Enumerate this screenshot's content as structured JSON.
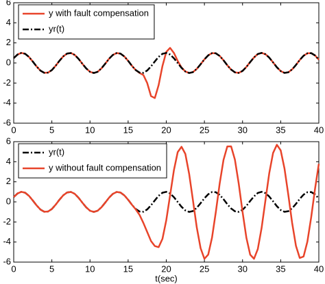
{
  "chart_data": [
    {
      "type": "line",
      "x": [
        0,
        0.5,
        1,
        1.5,
        2,
        2.5,
        3,
        3.5,
        4,
        4.5,
        5,
        5.5,
        6,
        6.5,
        7,
        7.5,
        8,
        8.5,
        9,
        9.5,
        10,
        10.5,
        11,
        11.5,
        12,
        12.5,
        13,
        13.5,
        14,
        14.5,
        15,
        15.5,
        16,
        16.5,
        17,
        17.5,
        18,
        18.5,
        19,
        19.5,
        20,
        20.5,
        21,
        21.5,
        22,
        22.5,
        23,
        23.5,
        24,
        24.5,
        25,
        25.5,
        26,
        26.5,
        27,
        27.5,
        28,
        28.5,
        29,
        29.5,
        30,
        30.5,
        31,
        31.5,
        32,
        32.5,
        33,
        33.5,
        34,
        34.5,
        35,
        35.5,
        36,
        36.5,
        37,
        37.5,
        38,
        38.5,
        39,
        39.5,
        40
      ],
      "series": [
        {
          "name": "y with fault compensation",
          "color": "#e8442a",
          "linestyle": "solid",
          "values": [
            0.48,
            0.84,
            1.0,
            0.91,
            0.6,
            0.14,
            -0.35,
            -0.76,
            -0.98,
            -0.96,
            -0.71,
            -0.28,
            0.22,
            0.66,
            0.94,
            0.99,
            0.8,
            0.41,
            -0.08,
            -0.54,
            -0.88,
            -1.0,
            -0.88,
            -0.54,
            -0.07,
            0.42,
            0.8,
            0.99,
            0.93,
            0.65,
            0.21,
            -0.29,
            -0.71,
            -1.0,
            -1.2,
            -2.0,
            -3.3,
            -3.5,
            -2.2,
            -0.3,
            1.1,
            1.5,
            1.0,
            0.2,
            -0.45,
            -0.85,
            -1.0,
            -0.91,
            -0.59,
            -0.13,
            0.36,
            0.76,
            0.98,
            0.96,
            0.7,
            0.27,
            -0.23,
            -0.66,
            -0.94,
            -0.99,
            -0.79,
            -0.4,
            0.09,
            0.55,
            0.89,
            1.0,
            0.87,
            0.53,
            0.06,
            -0.43,
            -0.81,
            -0.99,
            -0.93,
            -0.64,
            -0.2,
            0.3,
            0.72,
            0.96,
            0.98,
            0.75,
            0.33
          ]
        },
        {
          "name": "yr(t)",
          "color": "#000000",
          "linestyle": "dashdot",
          "values": [
            0.48,
            0.84,
            1.0,
            0.91,
            0.6,
            0.14,
            -0.35,
            -0.76,
            -0.98,
            -0.96,
            -0.71,
            -0.28,
            0.22,
            0.66,
            0.94,
            0.99,
            0.8,
            0.41,
            -0.08,
            -0.54,
            -0.88,
            -1.0,
            -0.88,
            -0.54,
            -0.07,
            0.42,
            0.8,
            0.99,
            0.93,
            0.65,
            0.21,
            -0.29,
            -0.71,
            -0.96,
            -0.98,
            -0.75,
            -0.34,
            0.15,
            0.61,
            0.91,
            1.0,
            0.84,
            0.47,
            -0.01,
            -0.49,
            -0.85,
            -1.0,
            -0.91,
            -0.59,
            -0.13,
            0.36,
            0.76,
            0.98,
            0.96,
            0.7,
            0.27,
            -0.23,
            -0.66,
            -0.94,
            -0.99,
            -0.79,
            -0.4,
            0.09,
            0.55,
            0.89,
            1.0,
            0.87,
            0.53,
            0.06,
            -0.43,
            -0.81,
            -0.99,
            -0.93,
            -0.64,
            -0.2,
            0.3,
            0.72,
            0.96,
            0.98,
            0.75,
            0.33
          ]
        }
      ],
      "xlim": [
        0,
        40
      ],
      "xticks": [
        0,
        5,
        10,
        15,
        20,
        25,
        30,
        35,
        40
      ],
      "ylim": [
        -6,
        6
      ],
      "yticks": [
        -6,
        -4,
        -2,
        0,
        2,
        4,
        6
      ],
      "legend": "upper left"
    },
    {
      "type": "line",
      "x": [
        0,
        0.5,
        1,
        1.5,
        2,
        2.5,
        3,
        3.5,
        4,
        4.5,
        5,
        5.5,
        6,
        6.5,
        7,
        7.5,
        8,
        8.5,
        9,
        9.5,
        10,
        10.5,
        11,
        11.5,
        12,
        12.5,
        13,
        13.5,
        14,
        14.5,
        15,
        15.5,
        16,
        16.5,
        17,
        17.5,
        18,
        18.5,
        19,
        19.5,
        20,
        20.5,
        21,
        21.5,
        22,
        22.5,
        23,
        23.5,
        24,
        24.5,
        25,
        25.5,
        26,
        26.5,
        27,
        27.5,
        28,
        28.5,
        29,
        29.5,
        30,
        30.5,
        31,
        31.5,
        32,
        32.5,
        33,
        33.5,
        34,
        34.5,
        35,
        35.5,
        36,
        36.5,
        37,
        37.5,
        38,
        38.5,
        39,
        39.5,
        40
      ],
      "xlabel": "t(sec)",
      "series": [
        {
          "name": "yr(t)",
          "color": "#000000",
          "linestyle": "dashdot",
          "values": [
            0.48,
            0.84,
            1.0,
            0.91,
            0.6,
            0.14,
            -0.35,
            -0.76,
            -0.98,
            -0.96,
            -0.71,
            -0.28,
            0.22,
            0.66,
            0.94,
            0.99,
            0.8,
            0.41,
            -0.08,
            -0.54,
            -0.88,
            -1.0,
            -0.88,
            -0.54,
            -0.07,
            0.42,
            0.8,
            0.99,
            0.93,
            0.65,
            0.21,
            -0.29,
            -0.71,
            -0.96,
            -0.98,
            -0.75,
            -0.34,
            0.15,
            0.61,
            0.91,
            1.0,
            0.84,
            0.47,
            -0.01,
            -0.49,
            -0.85,
            -1.0,
            -0.91,
            -0.59,
            -0.13,
            0.36,
            0.76,
            0.98,
            0.96,
            0.7,
            0.27,
            -0.23,
            -0.66,
            -0.94,
            -0.99,
            -0.79,
            -0.4,
            0.09,
            0.55,
            0.89,
            1.0,
            0.87,
            0.53,
            0.06,
            -0.43,
            -0.81,
            -0.99,
            -0.93,
            -0.64,
            -0.2,
            0.3,
            0.72,
            0.96,
            0.98,
            0.75,
            0.33
          ]
        },
        {
          "name": "y without fault compensation",
          "color": "#e8442a",
          "linestyle": "solid",
          "values": [
            0.48,
            0.84,
            1.0,
            0.91,
            0.6,
            0.14,
            -0.35,
            -0.76,
            -0.98,
            -0.96,
            -0.71,
            -0.28,
            0.22,
            0.66,
            0.94,
            0.99,
            0.8,
            0.41,
            -0.08,
            -0.54,
            -0.88,
            -1.0,
            -0.88,
            -0.54,
            -0.07,
            0.42,
            0.8,
            0.99,
            0.93,
            0.65,
            0.21,
            -0.29,
            -0.75,
            -1.3,
            -2.1,
            -3.0,
            -3.9,
            -4.4,
            -4.51,
            -3.68,
            -1.83,
            0.65,
            3.15,
            4.96,
            5.49,
            4.78,
            2.79,
            0.14,
            -2.55,
            -4.61,
            -5.67,
            -5.25,
            -3.55,
            -0.99,
            1.82,
            4.17,
            5.52,
            5.53,
            4.2,
            1.81,
            -0.99,
            -3.56,
            -5.26,
            -5.67,
            -4.7,
            -2.59,
            0.15,
            2.86,
            4.87,
            5.69,
            5.13,
            3.32,
            0.7,
            -2.09,
            -4.38,
            -5.59,
            -5.44,
            -3.96,
            -1.52,
            1.29,
            3.79
          ]
        }
      ],
      "xlim": [
        0,
        40
      ],
      "xticks": [
        0,
        5,
        10,
        15,
        20,
        25,
        30,
        35,
        40
      ],
      "ylim": [
        -6,
        6
      ],
      "yticks": [
        -6,
        -4,
        -2,
        0,
        2,
        4,
        6
      ],
      "legend": "upper left"
    }
  ]
}
